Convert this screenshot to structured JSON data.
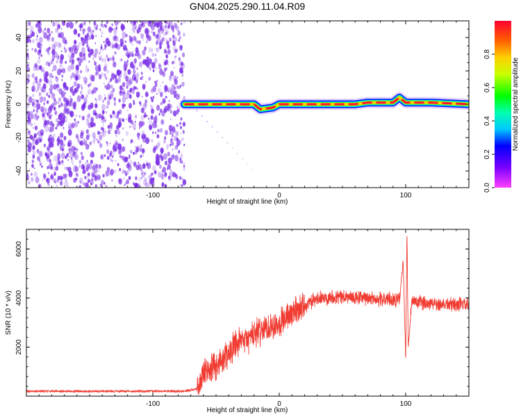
{
  "title": "GN04.2025.290.11.04.R09",
  "colors": {
    "snr_line": "#f03c32",
    "noise_dots": "#7a2ee6",
    "background": "#ffffff"
  },
  "chart_data": [
    {
      "type": "heatmap",
      "xlabel": "Height of straight line (km)",
      "ylabel": "Frequency (Hz)",
      "xlim": [
        -200,
        150
      ],
      "ylim": [
        -50,
        50
      ],
      "xticks": [
        -100,
        0,
        100
      ],
      "yticks": [
        -40,
        -20,
        0,
        20,
        40
      ],
      "grid": false,
      "noise_region_x": [
        -200,
        -75
      ],
      "ridge": {
        "x": [
          -75,
          -60,
          -40,
          -20,
          -15,
          -5,
          0,
          20,
          40,
          60,
          70,
          80,
          90,
          95,
          100,
          120,
          150
        ],
        "frequency": [
          0,
          0,
          0,
          0,
          -3,
          -2,
          0,
          0,
          0,
          0,
          1,
          1,
          1,
          4,
          1,
          1,
          0
        ]
      },
      "colorbar": {
        "label": "Normalized spectral amplitude",
        "range": [
          0,
          1
        ],
        "ticks": [
          0.0,
          0.2,
          0.4,
          0.6,
          0.8
        ],
        "tick_labels": [
          "0.0",
          "0.2",
          "0.4",
          "0.6",
          "0.8"
        ],
        "colormap": "rainbow"
      }
    },
    {
      "type": "line",
      "xlabel": "Height of straight line (km)",
      "ylabel": "SNR (10 * v/v)",
      "xlim": [
        -200,
        150
      ],
      "ylim": [
        0,
        6800
      ],
      "xticks": [
        -100,
        0,
        100
      ],
      "yticks": [
        2000,
        4000,
        6000
      ],
      "grid": false,
      "series": [
        {
          "x": [
            -200,
            -150,
            -100,
            -75,
            -65,
            -60,
            -50,
            -45,
            -40,
            -30,
            -20,
            -10,
            0,
            10,
            20,
            30,
            40,
            50,
            60,
            70,
            80,
            90,
            95,
            98,
            100,
            101,
            102,
            105,
            110,
            120,
            130,
            140,
            150
          ],
          "values": [
            200,
            200,
            200,
            200,
            300,
            900,
            1200,
            1500,
            1800,
            2200,
            2500,
            2800,
            3000,
            3400,
            3700,
            3950,
            4050,
            4050,
            4000,
            4000,
            3950,
            3950,
            3900,
            5500,
            1500,
            6700,
            2000,
            3900,
            3800,
            3800,
            3750,
            3750,
            3700
          ]
        }
      ]
    }
  ]
}
